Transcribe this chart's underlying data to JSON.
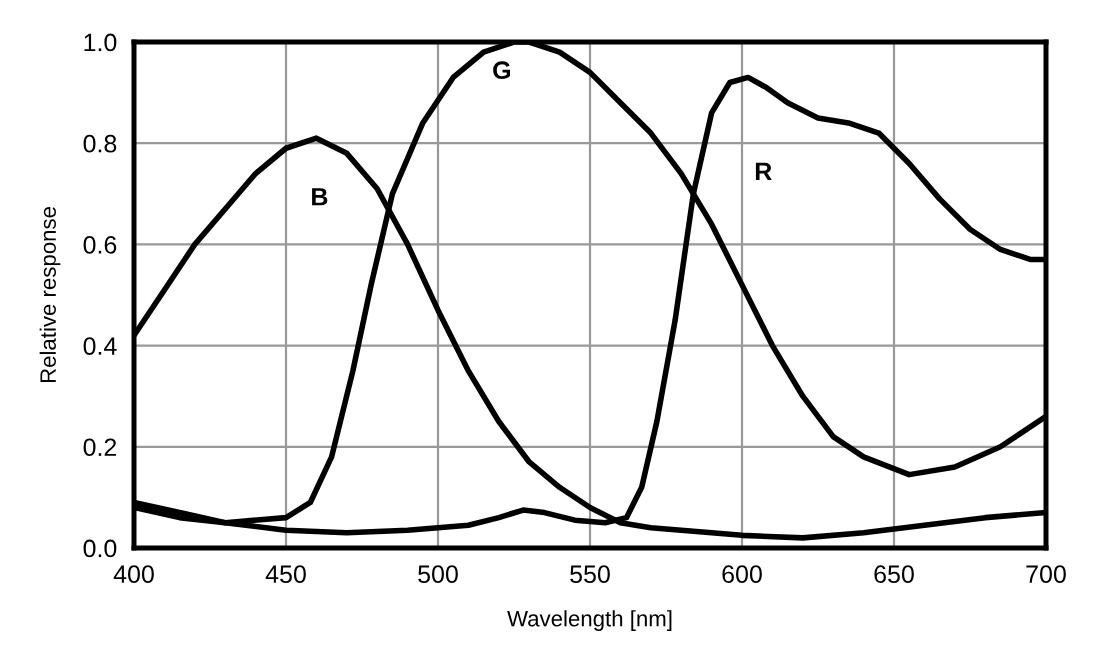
{
  "chart_data": {
    "type": "line",
    "xlabel": "Wavelength [nm]",
    "ylabel": "Relative response",
    "xlim": [
      400,
      700
    ],
    "ylim": [
      0,
      1.0
    ],
    "xticks": [
      400,
      450,
      500,
      550,
      600,
      650,
      700
    ],
    "yticks": [
      {
        "value": 0,
        "label": "0.0"
      },
      {
        "value": 0.2,
        "label": "0.2"
      },
      {
        "value": 0.4,
        "label": "0.4"
      },
      {
        "value": 0.6,
        "label": "0.6"
      },
      {
        "value": 0.8,
        "label": "0.8"
      },
      {
        "value": 1.0,
        "label": "1.0"
      }
    ],
    "grid": true,
    "legend": false,
    "line_style": "solid",
    "marker": "none",
    "series": [
      {
        "name": "B",
        "color": "#000000",
        "x": [
          400,
          410,
          420,
          430,
          440,
          450,
          460,
          470,
          480,
          490,
          500,
          510,
          520,
          530,
          540,
          550,
          560,
          570,
          580,
          600,
          620,
          640,
          660,
          680,
          700
        ],
        "values": [
          0.42,
          0.51,
          0.6,
          0.67,
          0.74,
          0.79,
          0.81,
          0.78,
          0.71,
          0.6,
          0.47,
          0.35,
          0.25,
          0.17,
          0.12,
          0.08,
          0.05,
          0.04,
          0.035,
          0.025,
          0.02,
          0.03,
          0.045,
          0.06,
          0.07
        ]
      },
      {
        "name": "G",
        "color": "#000000",
        "x": [
          400,
          415,
          430,
          450,
          458,
          465,
          472,
          478,
          485,
          495,
          505,
          515,
          525,
          530,
          540,
          550,
          560,
          570,
          580,
          590,
          600,
          610,
          620,
          630,
          640,
          655,
          670,
          685,
          700
        ],
        "values": [
          0.08,
          0.06,
          0.05,
          0.06,
          0.09,
          0.18,
          0.35,
          0.52,
          0.7,
          0.84,
          0.93,
          0.98,
          1.0,
          1.0,
          0.98,
          0.94,
          0.88,
          0.82,
          0.74,
          0.64,
          0.52,
          0.4,
          0.3,
          0.22,
          0.18,
          0.145,
          0.16,
          0.2,
          0.26
        ]
      },
      {
        "name": "R",
        "color": "#000000",
        "x": [
          400,
          415,
          430,
          450,
          470,
          490,
          510,
          520,
          528,
          535,
          545,
          555,
          562,
          567,
          572,
          578,
          584,
          590,
          596,
          602,
          608,
          615,
          625,
          635,
          645,
          655,
          665,
          675,
          685,
          695,
          700
        ],
        "values": [
          0.09,
          0.07,
          0.05,
          0.035,
          0.03,
          0.035,
          0.045,
          0.06,
          0.075,
          0.07,
          0.055,
          0.05,
          0.06,
          0.12,
          0.25,
          0.45,
          0.7,
          0.86,
          0.92,
          0.93,
          0.91,
          0.88,
          0.85,
          0.84,
          0.82,
          0.76,
          0.69,
          0.63,
          0.59,
          0.57,
          0.57
        ]
      }
    ]
  }
}
